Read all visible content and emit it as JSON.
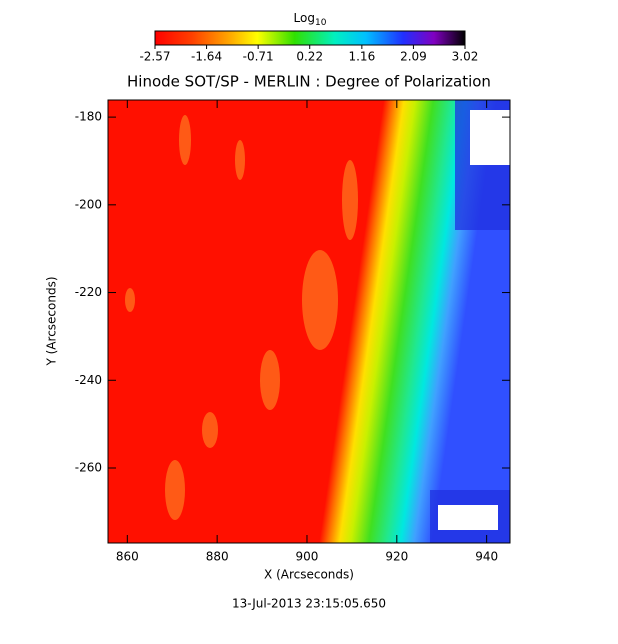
{
  "chart_data": {
    "type": "image",
    "title": "Hinode SOT/SP - MERLIN : Degree of Polarization",
    "x_label": "X (Arcseconds)",
    "y_label": "Y (Arcseconds)",
    "xlim": [
      855.7,
      945.2
    ],
    "xticks": [
      860,
      880,
      900,
      920,
      940
    ],
    "ylim": [
      -277.1,
      -176.1
    ],
    "yticks": [
      -260,
      -240,
      -220,
      -200,
      -180
    ],
    "colorbar_label": "Log",
    "colorbar_label_subscript": "10",
    "colorbar_lim": [
      -2.57,
      3.02
    ],
    "colorbar_ticks": [
      -2.57,
      -1.64,
      -0.71,
      0.22,
      1.16,
      2.09,
      3.02
    ],
    "date": "13-Jul-2013 23:15:05.650"
  }
}
